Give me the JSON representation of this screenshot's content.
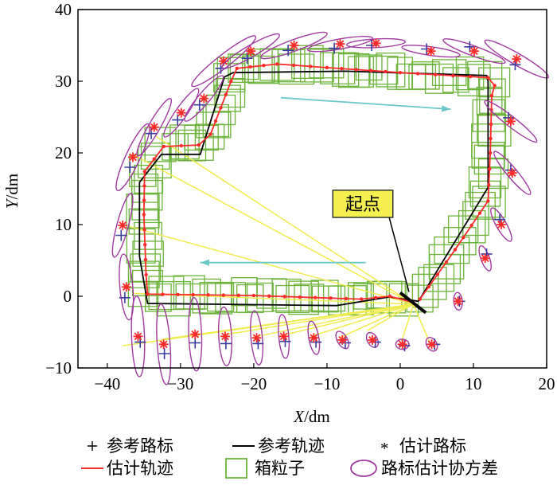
{
  "chart_data": {
    "type": "line",
    "xlabel_var": "X",
    "xlabel_unit": "/dm",
    "ylabel_var": "Y",
    "ylabel_unit": "/dm",
    "xlim": [
      -44,
      20
    ],
    "ylim": [
      -10,
      40
    ],
    "xticks": [
      -40,
      -30,
      -20,
      -10,
      0,
      10,
      20
    ],
    "yticks": [
      -10,
      0,
      10,
      20,
      30,
      40
    ],
    "xtick_labels": [
      "−40",
      "−30",
      "−20",
      "−10",
      "0",
      "10",
      "20"
    ],
    "ytick_labels": [
      "−10",
      "0",
      "10",
      "20",
      "30",
      "40"
    ],
    "grid": false,
    "legend_placement": "bottom",
    "colors": {
      "reference_landmark": "#3a3aa0",
      "reference_trajectory": "#000000",
      "estimated_landmark": "#ff2a2a",
      "estimated_trajectory": "#ff2a2a",
      "box_particle": "#6bb33a",
      "covariance": "#a03aa0",
      "observation_line": "#f0ec50",
      "direction_arrow": "#6cc8c8",
      "start_label_bg": "#f5f050"
    },
    "reference_trajectory": [
      [
        2.5,
        -0.7
      ],
      [
        -1.5,
        -0.1
      ],
      [
        -8.7,
        -1.3
      ],
      [
        -34.5,
        -1.0
      ],
      [
        -35.6,
        5.6
      ],
      [
        -35.6,
        15.9
      ],
      [
        -32.6,
        19.8
      ],
      [
        -27.3,
        19.8
      ],
      [
        -24.0,
        30.6
      ],
      [
        -22.8,
        31.2
      ],
      [
        -7.5,
        31.4
      ],
      [
        11.8,
        30.8
      ],
      [
        12.0,
        30.0
      ],
      [
        12.0,
        15.2
      ],
      [
        2.5,
        -0.7
      ]
    ],
    "estimated_trajectory": [
      [
        2.7,
        -0.4
      ],
      [
        7.5,
        6.5
      ],
      [
        12.0,
        13.3
      ],
      [
        12.3,
        20
      ],
      [
        12.5,
        28.0
      ],
      [
        12.9,
        29.4
      ],
      [
        12.0,
        30.5
      ],
      [
        0,
        31.2
      ],
      [
        -10,
        31.9
      ],
      [
        -16.8,
        32.4
      ],
      [
        -22.3,
        31.8
      ],
      [
        -23.1,
        30.0
      ],
      [
        -25.9,
        22.6
      ],
      [
        -27.5,
        21.1
      ],
      [
        -32.3,
        20.9
      ],
      [
        -34.9,
        17.4
      ],
      [
        -35.0,
        11.4
      ],
      [
        -34.7,
        3.0
      ],
      [
        -34.5,
        0.3
      ],
      [
        -20,
        0.1
      ],
      [
        -5.3,
        -0.4
      ],
      [
        -1.4,
        0.0
      ],
      [
        1.5,
        -0.8
      ]
    ],
    "landmarks": [
      {
        "est": [
          -37.4,
          1.3
        ],
        "ref": [
          -37.6,
          -0.2
        ],
        "cov": [
          0.9,
          4.5,
          95
        ]
      },
      {
        "est": [
          -37.9,
          9.9
        ],
        "ref": [
          -38.1,
          8.5
        ],
        "cov": [
          0.8,
          4.5,
          75
        ]
      },
      {
        "est": [
          -36.5,
          19.4
        ],
        "ref": [
          -36.9,
          18.0
        ],
        "cov": [
          1.0,
          5.0,
          65
        ]
      },
      {
        "est": [
          -33.6,
          23.6
        ],
        "ref": [
          -34.0,
          22.7
        ],
        "cov": [
          0.8,
          4.5,
          60
        ]
      },
      {
        "est": [
          -29.9,
          25.6
        ],
        "ref": [
          -30.4,
          24.6
        ],
        "cov": [
          0.8,
          4.0,
          55
        ]
      },
      {
        "est": [
          -26.8,
          27.6
        ],
        "ref": [
          -27.4,
          26.7
        ],
        "cov": [
          0.8,
          4.0,
          50
        ]
      },
      {
        "est": [
          -24.1,
          32.8
        ],
        "ref": [
          -24.5,
          31.8
        ],
        "cov": [
          0.9,
          5.5,
          38
        ]
      },
      {
        "est": [
          -20.4,
          34.2
        ],
        "ref": [
          -20.9,
          33.2
        ],
        "cov": [
          0.8,
          4.5,
          30
        ]
      },
      {
        "est": [
          -14.5,
          35.0
        ],
        "ref": [
          -15.3,
          34.3
        ],
        "cov": [
          0.8,
          4.8,
          20
        ]
      },
      {
        "est": [
          -8.2,
          35.2
        ],
        "ref": [
          -9.0,
          34.6
        ],
        "cov": [
          0.7,
          4.5,
          10
        ]
      },
      {
        "est": [
          -3.3,
          35.3
        ],
        "ref": [
          -3.9,
          35.0
        ],
        "cov": [
          0.6,
          4.0,
          3
        ]
      },
      {
        "est": [
          4.2,
          34.2
        ],
        "ref": [
          3.6,
          34.5
        ],
        "cov": [
          0.6,
          4.0,
          -8
        ]
      },
      {
        "est": [
          10.1,
          34.2
        ],
        "ref": [
          9.5,
          34.8
        ],
        "cov": [
          0.7,
          4.5,
          -20
        ]
      },
      {
        "est": [
          15.9,
          33.1
        ],
        "ref": [
          15.7,
          32.3
        ],
        "cov": [
          0.8,
          5.0,
          -30
        ]
      },
      {
        "est": [
          15.1,
          24.4
        ],
        "ref": [
          14.8,
          24.9
        ],
        "cov": [
          0.7,
          4.5,
          -38
        ]
      },
      {
        "est": [
          15.3,
          17.2
        ],
        "ref": [
          15.1,
          17.6
        ],
        "cov": [
          0.7,
          3.8,
          -50
        ]
      },
      {
        "est": [
          13.8,
          10.0
        ],
        "ref": [
          13.6,
          10.7
        ],
        "cov": [
          0.7,
          2.6,
          -60
        ]
      },
      {
        "est": [
          11.6,
          5.3
        ],
        "ref": [
          11.8,
          5.9
        ],
        "cov": [
          0.6,
          1.8,
          -70
        ]
      },
      {
        "est": [
          7.9,
          -0.7
        ],
        "ref": [
          8.1,
          -0.7
        ],
        "cov": [
          0.6,
          1.2,
          -85
        ]
      },
      {
        "est": [
          4.3,
          -6.7
        ],
        "ref": [
          4.7,
          -6.7
        ],
        "cov": [
          0.7,
          1.0,
          -60
        ]
      },
      {
        "est": [
          0.3,
          -6.7
        ],
        "ref": [
          0.6,
          -6.9
        ],
        "cov": [
          0.7,
          0.9,
          0
        ]
      },
      {
        "est": [
          -3.8,
          -6.1
        ],
        "ref": [
          -3.4,
          -6.4
        ],
        "cov": [
          0.7,
          1.1,
          -60
        ]
      },
      {
        "est": [
          -7.9,
          -6.1
        ],
        "ref": [
          -7.5,
          -6.5
        ],
        "cov": [
          0.7,
          1.3,
          -60
        ]
      },
      {
        "est": [
          -11.8,
          -5.8
        ],
        "ref": [
          -11.5,
          -6.4
        ],
        "cov": [
          0.7,
          2.3,
          -80
        ]
      },
      {
        "est": [
          -15.9,
          -5.6
        ],
        "ref": [
          -15.7,
          -6.3
        ],
        "cov": [
          0.7,
          3.0,
          -85
        ]
      },
      {
        "est": [
          -19.6,
          -5.8
        ],
        "ref": [
          -19.4,
          -6.6
        ],
        "cov": [
          0.8,
          3.7,
          -85
        ]
      },
      {
        "est": [
          -23.9,
          -5.6
        ],
        "ref": [
          -23.8,
          -6.6
        ],
        "cov": [
          0.9,
          4.0,
          -87
        ]
      },
      {
        "est": [
          -28.0,
          -5.3
        ],
        "ref": [
          -28.0,
          -6.5
        ],
        "cov": [
          0.9,
          5.0,
          -88
        ]
      },
      {
        "est": [
          -32.3,
          -6.7
        ],
        "ref": [
          -32.2,
          -8.0
        ],
        "cov": [
          0.9,
          5.5,
          -86
        ]
      },
      {
        "est": [
          -35.8,
          -5.6
        ],
        "ref": [
          -35.5,
          -6.4
        ],
        "cov": [
          0.9,
          5.5,
          -88
        ]
      }
    ],
    "box_size": 4,
    "observation_origin": [
      1.8,
      -1.1
    ],
    "observation_targets": [
      [
        -33.5,
        22.4
      ],
      [
        -36.2,
        19.6
      ],
      [
        -36.9,
        9.7
      ],
      [
        -36.3,
        0.4
      ],
      [
        -37.9,
        -6.9
      ],
      [
        -32.5,
        -6.0
      ],
      [
        -28.5,
        -5.5
      ],
      [
        -24.2,
        -5.4
      ],
      [
        -20,
        -5.7
      ],
      [
        -16.3,
        -5.5
      ],
      [
        -12.2,
        -5.6
      ],
      [
        -8.3,
        -5.8
      ],
      [
        -4.5,
        -4.8
      ],
      [
        0.2,
        -6.3
      ],
      [
        4.0,
        -6.4
      ]
    ],
    "direction_arrows": [
      {
        "from": [
          -16.3,
          27.7
        ],
        "to": [
          6.9,
          26.1
        ]
      },
      {
        "from": [
          -4.7,
          4.7
        ],
        "to": [
          -27.3,
          4.7
        ]
      }
    ],
    "start_marker": {
      "from": [
        0.0,
        0.5
      ],
      "to": [
        3.5,
        -2.3
      ]
    },
    "start_annotation": {
      "text": "起点",
      "anchor": [
        1.2,
        0.6
      ],
      "box": [
        -9.2,
        14.8,
        -1.0,
        11.0
      ]
    },
    "legend": [
      {
        "symbol": "plus",
        "label": "参考路标"
      },
      {
        "symbol": "black-line",
        "label": "参考轨迹"
      },
      {
        "symbol": "asterisk",
        "label": "估计路标"
      },
      {
        "symbol": "red-line",
        "label": "估计轨迹"
      },
      {
        "symbol": "green-box",
        "label": "箱粒子"
      },
      {
        "symbol": "ellipse",
        "label": "路标估计协方差"
      }
    ]
  }
}
